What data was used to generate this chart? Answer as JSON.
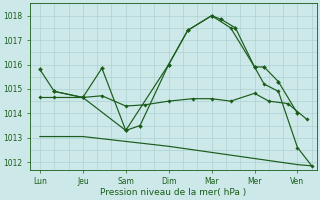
{
  "background_color": "#cce8e8",
  "grid_color": "#a8cccc",
  "line_color": "#1a5c1a",
  "xlabel": "Pression niveau de la mer( hPa )",
  "ylim": [
    1011.7,
    1018.5
  ],
  "yticks": [
    1012,
    1013,
    1014,
    1015,
    1016,
    1017,
    1018
  ],
  "x_labels": [
    "Lun",
    "Jeu",
    "Sam",
    "Dim",
    "Mar",
    "Mer",
    "Ven"
  ],
  "x_tick_pos": [
    0,
    9,
    18,
    27,
    36,
    45,
    54
  ],
  "xlim": [
    -2,
    58
  ],
  "series1_x": [
    0,
    3,
    9,
    13,
    18,
    21,
    27,
    31,
    36,
    38,
    41,
    45,
    47,
    50,
    54
  ],
  "series1_y": [
    1015.8,
    1014.9,
    1014.65,
    1015.85,
    1013.3,
    1013.5,
    1016.0,
    1017.4,
    1018.0,
    1017.85,
    1017.5,
    1015.9,
    1015.9,
    1015.3,
    1014.0
  ],
  "series2_x": [
    0,
    3,
    9,
    13,
    18,
    22,
    27,
    32,
    36,
    40,
    45,
    48,
    52,
    56
  ],
  "series2_y": [
    1014.65,
    1014.65,
    1014.65,
    1014.72,
    1014.3,
    1014.35,
    1014.5,
    1014.6,
    1014.6,
    1014.5,
    1014.82,
    1014.5,
    1014.4,
    1013.75
  ],
  "series3_x": [
    0,
    9,
    18,
    27,
    36,
    45,
    54,
    57
  ],
  "series3_y": [
    1013.05,
    1013.05,
    1012.85,
    1012.65,
    1012.4,
    1012.15,
    1011.9,
    1011.85
  ],
  "series4_x": [
    3,
    9,
    18,
    27,
    31,
    36,
    40,
    45,
    47,
    50,
    54,
    57
  ],
  "series4_y": [
    1014.9,
    1014.65,
    1013.3,
    1016.0,
    1017.4,
    1018.0,
    1017.5,
    1015.9,
    1015.2,
    1014.9,
    1012.6,
    1011.85
  ]
}
